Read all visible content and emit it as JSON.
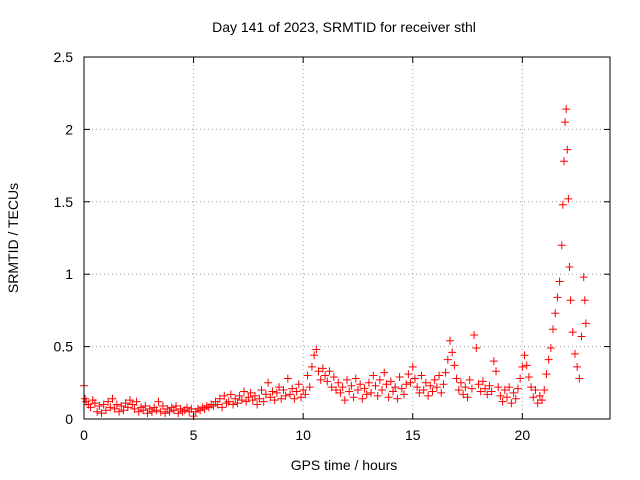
{
  "chart_data": {
    "type": "scatter",
    "title": "Day 141 of 2023, SRMTID for receiver sthl",
    "xlabel": "GPS time / hours",
    "ylabel": "SRMTID / TECUs",
    "xlim": [
      0,
      24
    ],
    "ylim": [
      0,
      2.5
    ],
    "xticks": [
      0,
      5,
      10,
      15,
      20
    ],
    "xtick_labels": [
      "0",
      "5",
      "10",
      "15",
      "20"
    ],
    "yticks": [
      0,
      0.5,
      1,
      1.5,
      2,
      2.5
    ],
    "ytick_labels": [
      "0",
      "0.5",
      "1",
      "1.5",
      "2",
      "2.5"
    ],
    "grid": true,
    "marker": "+",
    "color": "#ff0000",
    "series": [
      {
        "name": "sthl",
        "points": [
          [
            0.0,
            0.23
          ],
          [
            0.05,
            0.14
          ],
          [
            0.1,
            0.12
          ],
          [
            0.2,
            0.1
          ],
          [
            0.3,
            0.08
          ],
          [
            0.4,
            0.13
          ],
          [
            0.5,
            0.11
          ],
          [
            0.6,
            0.05
          ],
          [
            0.7,
            0.09
          ],
          [
            0.8,
            0.04
          ],
          [
            0.9,
            0.1
          ],
          [
            1.0,
            0.06
          ],
          [
            1.1,
            0.12
          ],
          [
            1.2,
            0.08
          ],
          [
            1.3,
            0.14
          ],
          [
            1.4,
            0.07
          ],
          [
            1.5,
            0.1
          ],
          [
            1.6,
            0.05
          ],
          [
            1.7,
            0.09
          ],
          [
            1.8,
            0.06
          ],
          [
            1.9,
            0.11
          ],
          [
            2.0,
            0.08
          ],
          [
            2.1,
            0.13
          ],
          [
            2.2,
            0.1
          ],
          [
            2.3,
            0.07
          ],
          [
            2.4,
            0.12
          ],
          [
            2.5,
            0.05
          ],
          [
            2.6,
            0.08
          ],
          [
            2.7,
            0.06
          ],
          [
            2.8,
            0.09
          ],
          [
            2.9,
            0.04
          ],
          [
            3.0,
            0.07
          ],
          [
            3.1,
            0.05
          ],
          [
            3.2,
            0.08
          ],
          [
            3.3,
            0.06
          ],
          [
            3.4,
            0.12
          ],
          [
            3.5,
            0.05
          ],
          [
            3.6,
            0.09
          ],
          [
            3.7,
            0.04
          ],
          [
            3.8,
            0.07
          ],
          [
            3.9,
            0.05
          ],
          [
            4.0,
            0.08
          ],
          [
            4.1,
            0.06
          ],
          [
            4.2,
            0.09
          ],
          [
            4.3,
            0.04
          ],
          [
            4.4,
            0.07
          ],
          [
            4.5,
            0.05
          ],
          [
            4.6,
            0.06
          ],
          [
            4.7,
            0.08
          ],
          [
            4.8,
            0.05
          ],
          [
            4.9,
            0.07
          ],
          [
            5.0,
            0.02
          ],
          [
            5.1,
            0.05
          ],
          [
            5.2,
            0.07
          ],
          [
            5.3,
            0.06
          ],
          [
            5.4,
            0.08
          ],
          [
            5.5,
            0.07
          ],
          [
            5.6,
            0.09
          ],
          [
            5.7,
            0.08
          ],
          [
            5.8,
            0.1
          ],
          [
            5.9,
            0.09
          ],
          [
            6.0,
            0.12
          ],
          [
            6.1,
            0.1
          ],
          [
            6.2,
            0.14
          ],
          [
            6.3,
            0.08
          ],
          [
            6.4,
            0.16
          ],
          [
            6.5,
            0.11
          ],
          [
            6.6,
            0.12
          ],
          [
            6.7,
            0.17
          ],
          [
            6.8,
            0.1
          ],
          [
            6.9,
            0.14
          ],
          [
            7.0,
            0.11
          ],
          [
            7.1,
            0.16
          ],
          [
            7.2,
            0.13
          ],
          [
            7.3,
            0.19
          ],
          [
            7.4,
            0.12
          ],
          [
            7.5,
            0.15
          ],
          [
            7.6,
            0.18
          ],
          [
            7.7,
            0.13
          ],
          [
            7.8,
            0.16
          ],
          [
            7.9,
            0.1
          ],
          [
            8.0,
            0.14
          ],
          [
            8.1,
            0.2
          ],
          [
            8.2,
            0.12
          ],
          [
            8.3,
            0.17
          ],
          [
            8.4,
            0.25
          ],
          [
            8.5,
            0.15
          ],
          [
            8.6,
            0.19
          ],
          [
            8.7,
            0.13
          ],
          [
            8.8,
            0.18
          ],
          [
            8.9,
            0.22
          ],
          [
            9.0,
            0.14
          ],
          [
            9.1,
            0.2
          ],
          [
            9.2,
            0.16
          ],
          [
            9.3,
            0.28
          ],
          [
            9.4,
            0.17
          ],
          [
            9.5,
            0.21
          ],
          [
            9.6,
            0.14
          ],
          [
            9.7,
            0.19
          ],
          [
            9.8,
            0.24
          ],
          [
            9.9,
            0.15
          ],
          [
            10.0,
            0.2
          ],
          [
            10.1,
            0.17
          ],
          [
            10.2,
            0.3
          ],
          [
            10.3,
            0.22
          ],
          [
            10.4,
            0.36
          ],
          [
            10.5,
            0.44
          ],
          [
            10.6,
            0.48
          ],
          [
            10.7,
            0.33
          ],
          [
            10.8,
            0.27
          ],
          [
            10.9,
            0.35
          ],
          [
            11.0,
            0.3
          ],
          [
            11.1,
            0.26
          ],
          [
            11.2,
            0.33
          ],
          [
            11.3,
            0.22
          ],
          [
            11.4,
            0.29
          ],
          [
            11.5,
            0.2
          ],
          [
            11.6,
            0.25
          ],
          [
            11.7,
            0.18
          ],
          [
            11.8,
            0.22
          ],
          [
            11.9,
            0.13
          ],
          [
            12.0,
            0.27
          ],
          [
            12.1,
            0.19
          ],
          [
            12.2,
            0.23
          ],
          [
            12.3,
            0.15
          ],
          [
            12.4,
            0.28
          ],
          [
            12.5,
            0.2
          ],
          [
            12.6,
            0.24
          ],
          [
            12.7,
            0.14
          ],
          [
            12.8,
            0.21
          ],
          [
            12.9,
            0.17
          ],
          [
            13.0,
            0.25
          ],
          [
            13.1,
            0.18
          ],
          [
            13.2,
            0.3
          ],
          [
            13.3,
            0.23
          ],
          [
            13.4,
            0.16
          ],
          [
            13.5,
            0.27
          ],
          [
            13.6,
            0.2
          ],
          [
            13.7,
            0.32
          ],
          [
            13.8,
            0.24
          ],
          [
            13.9,
            0.15
          ],
          [
            14.0,
            0.26
          ],
          [
            14.1,
            0.19
          ],
          [
            14.2,
            0.22
          ],
          [
            14.3,
            0.14
          ],
          [
            14.4,
            0.29
          ],
          [
            14.5,
            0.21
          ],
          [
            14.6,
            0.17
          ],
          [
            14.7,
            0.24
          ],
          [
            14.8,
            0.31
          ],
          [
            14.9,
            0.25
          ],
          [
            15.0,
            0.36
          ],
          [
            15.1,
            0.28
          ],
          [
            15.2,
            0.22
          ],
          [
            15.3,
            0.18
          ],
          [
            15.4,
            0.3
          ],
          [
            15.5,
            0.2
          ],
          [
            15.6,
            0.25
          ],
          [
            15.7,
            0.16
          ],
          [
            15.8,
            0.23
          ],
          [
            15.9,
            0.19
          ],
          [
            16.0,
            0.27
          ],
          [
            16.1,
            0.22
          ],
          [
            16.2,
            0.3
          ],
          [
            16.3,
            0.18
          ],
          [
            16.4,
            0.24
          ],
          [
            16.5,
            0.32
          ],
          [
            16.6,
            0.41
          ],
          [
            16.7,
            0.54
          ],
          [
            16.8,
            0.46
          ],
          [
            16.9,
            0.37
          ],
          [
            17.0,
            0.28
          ],
          [
            17.1,
            0.2
          ],
          [
            17.2,
            0.25
          ],
          [
            17.3,
            0.17
          ],
          [
            17.4,
            0.22
          ],
          [
            17.5,
            0.15
          ],
          [
            17.6,
            0.27
          ],
          [
            17.7,
            0.21
          ],
          [
            17.8,
            0.58
          ],
          [
            17.9,
            0.49
          ],
          [
            18.0,
            0.24
          ],
          [
            18.1,
            0.19
          ],
          [
            18.2,
            0.26
          ],
          [
            18.3,
            0.21
          ],
          [
            18.4,
            0.17
          ],
          [
            18.5,
            0.23
          ],
          [
            18.6,
            0.19
          ],
          [
            18.7,
            0.4
          ],
          [
            18.8,
            0.33
          ],
          [
            18.9,
            0.22
          ],
          [
            19.0,
            0.16
          ],
          [
            19.1,
            0.12
          ],
          [
            19.2,
            0.2
          ],
          [
            19.3,
            0.15
          ],
          [
            19.4,
            0.22
          ],
          [
            19.5,
            0.11
          ],
          [
            19.6,
            0.18
          ],
          [
            19.7,
            0.14
          ],
          [
            19.8,
            0.21
          ],
          [
            19.9,
            0.28
          ],
          [
            20.0,
            0.36
          ],
          [
            20.1,
            0.44
          ],
          [
            20.2,
            0.37
          ],
          [
            20.3,
            0.29
          ],
          [
            20.4,
            0.22
          ],
          [
            20.5,
            0.15
          ],
          [
            20.6,
            0.2
          ],
          [
            20.7,
            0.11
          ],
          [
            20.8,
            0.16
          ],
          [
            20.9,
            0.13
          ],
          [
            21.0,
            0.2
          ],
          [
            21.1,
            0.31
          ],
          [
            21.2,
            0.41
          ],
          [
            21.3,
            0.49
          ],
          [
            21.4,
            0.62
          ],
          [
            21.5,
            0.73
          ],
          [
            21.6,
            0.84
          ],
          [
            21.7,
            0.95
          ],
          [
            21.8,
            1.2
          ],
          [
            21.85,
            1.48
          ],
          [
            21.9,
            1.78
          ],
          [
            21.95,
            2.05
          ],
          [
            22.0,
            2.14
          ],
          [
            22.05,
            1.86
          ],
          [
            22.1,
            1.52
          ],
          [
            22.15,
            1.05
          ],
          [
            22.2,
            0.82
          ],
          [
            22.3,
            0.6
          ],
          [
            22.4,
            0.45
          ],
          [
            22.5,
            0.36
          ],
          [
            22.6,
            0.28
          ],
          [
            22.7,
            0.57
          ],
          [
            22.8,
            0.98
          ],
          [
            22.85,
            0.82
          ],
          [
            22.9,
            0.66
          ]
        ]
      }
    ]
  }
}
